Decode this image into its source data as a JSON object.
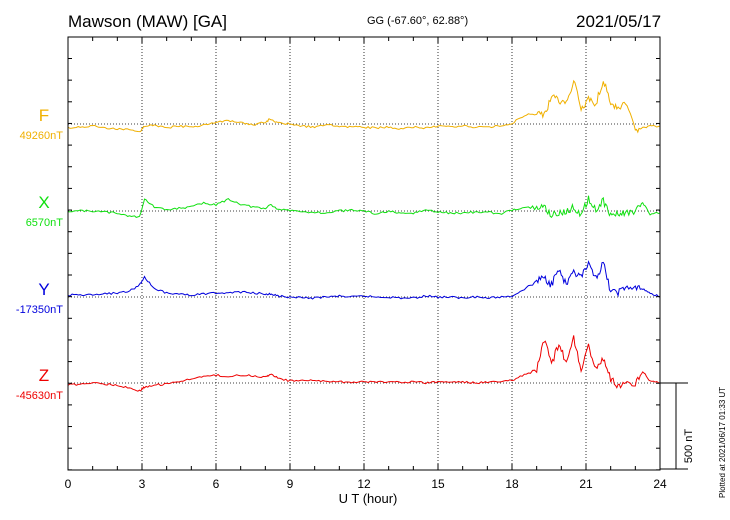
{
  "header": {
    "station": "Mawson (MAW)  [GA]",
    "coords": "GG (-67.60°,  62.88°)",
    "date": "2021/05/17"
  },
  "footer": {
    "plotted": "Plotted at 2021/06/17 01:33 UT"
  },
  "colors": {
    "F": "#f0b000",
    "X": "#10e010",
    "Y": "#0000dd",
    "Z": "#ee0000"
  },
  "chart_data": {
    "type": "line",
    "xlabel": "U T (hour)",
    "xlim": [
      0,
      24
    ],
    "x_ticks": [
      "0",
      "3",
      "6",
      "9",
      "12",
      "15",
      "18",
      "21",
      "24"
    ],
    "scale_label": "500 nT",
    "scale_nT": 500,
    "x": [
      0,
      0.5,
      1,
      1.5,
      2,
      2.5,
      2.9,
      3.1,
      3.5,
      4,
      4.5,
      5,
      5.5,
      6,
      6.5,
      7,
      7.5,
      8,
      8.2,
      8.5,
      9,
      9.5,
      10,
      10.5,
      11,
      11.5,
      12,
      12.5,
      13,
      13.5,
      14,
      14.5,
      15,
      15.5,
      16,
      16.5,
      17,
      17.5,
      18,
      18.5,
      19,
      19.3,
      19.6,
      19.9,
      20.2,
      20.5,
      20.8,
      21.1,
      21.4,
      21.7,
      22,
      22.3,
      22.6,
      23,
      23.3,
      23.6,
      24
    ],
    "series": [
      {
        "name": "F",
        "baseline_label": "49260nT",
        "values": [
          -20,
          -15,
          -10,
          -20,
          -25,
          -30,
          -40,
          -10,
          -5,
          -20,
          -10,
          -15,
          -5,
          10,
          15,
          5,
          -5,
          10,
          25,
          5,
          0,
          -10,
          -15,
          -5,
          -10,
          -15,
          -15,
          -20,
          -15,
          -25,
          -15,
          -20,
          -10,
          -15,
          -10,
          -15,
          -15,
          -10,
          5,
          40,
          60,
          40,
          140,
          120,
          100,
          220,
          80,
          120,
          100,
          220,
          110,
          80,
          100,
          -25,
          -20,
          -10,
          -10
        ]
      },
      {
        "name": "X",
        "baseline_label": "6570nT",
        "values": [
          0,
          0,
          0,
          -5,
          -10,
          -25,
          -30,
          60,
          20,
          5,
          15,
          20,
          40,
          30,
          60,
          35,
          20,
          10,
          35,
          10,
          0,
          -5,
          -5,
          -10,
          0,
          5,
          0,
          -15,
          0,
          -15,
          -10,
          5,
          -5,
          -10,
          -10,
          -5,
          -5,
          -15,
          5,
          20,
          10,
          25,
          -20,
          -10,
          -5,
          20,
          -15,
          60,
          5,
          50,
          -20,
          -15,
          -5,
          -5,
          40,
          -15,
          -10
        ]
      },
      {
        "name": "Y",
        "baseline_label": "-17350nT",
        "values": [
          10,
          10,
          10,
          15,
          20,
          30,
          60,
          100,
          40,
          20,
          15,
          10,
          15,
          20,
          20,
          25,
          20,
          15,
          15,
          5,
          0,
          -5,
          -5,
          0,
          5,
          0,
          5,
          0,
          0,
          -5,
          -5,
          5,
          0,
          0,
          -5,
          0,
          -5,
          0,
          5,
          40,
          80,
          100,
          60,
          140,
          60,
          120,
          100,
          160,
          90,
          170,
          30,
          20,
          50,
          40,
          40,
          20,
          0
        ]
      },
      {
        "name": "Z",
        "baseline_label": "-45630nT",
        "values": [
          -10,
          -5,
          0,
          -5,
          -10,
          -25,
          -40,
          -20,
          -10,
          -5,
          10,
          20,
          30,
          40,
          30,
          40,
          35,
          30,
          45,
          25,
          10,
          15,
          10,
          10,
          5,
          5,
          5,
          5,
          5,
          5,
          5,
          0,
          5,
          5,
          5,
          0,
          5,
          5,
          15,
          40,
          60,
          220,
          90,
          200,
          90,
          230,
          70,
          180,
          70,
          120,
          20,
          -20,
          5,
          -5,
          60,
          10,
          0
        ]
      }
    ]
  }
}
